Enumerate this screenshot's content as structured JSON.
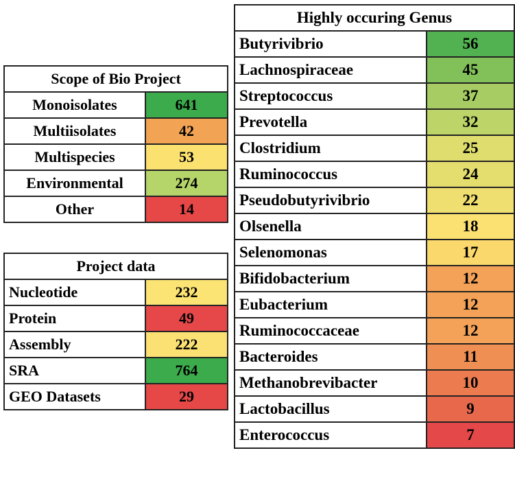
{
  "chart_data": [
    {
      "type": "table",
      "title": "Scope of Bio Project",
      "rows": [
        {
          "label": "Monoisolates",
          "value": 641,
          "color": "#3cab4c"
        },
        {
          "label": "Multiisolates",
          "value": 42,
          "color": "#f2a454"
        },
        {
          "label": "Multispecies",
          "value": 53,
          "color": "#fbe170"
        },
        {
          "label": "Environmental",
          "value": 274,
          "color": "#b5d46a"
        },
        {
          "label": "Other",
          "value": 14,
          "color": "#e64848"
        }
      ]
    },
    {
      "type": "table",
      "title": "Project data",
      "rows": [
        {
          "label": "Nucleotide",
          "value": 232,
          "color": "#fbe474"
        },
        {
          "label": "Protein",
          "value": 49,
          "color": "#e6484a"
        },
        {
          "label": "Assembly",
          "value": 222,
          "color": "#fbe173"
        },
        {
          "label": "SRA",
          "value": 764,
          "color": "#3cab4c"
        },
        {
          "label": "GEO Datasets",
          "value": 29,
          "color": "#e64848"
        }
      ]
    },
    {
      "type": "table",
      "title": "Highly occuring Genus",
      "rows": [
        {
          "label": "Butyrivibrio",
          "value": 56,
          "color": "#52b150"
        },
        {
          "label": "Lachnospiraceae",
          "value": 45,
          "color": "#82c05a"
        },
        {
          "label": "Streptococcus",
          "value": 37,
          "color": "#a6cc63"
        },
        {
          "label": "Prevotella",
          "value": 32,
          "color": "#bcd468"
        },
        {
          "label": "Clostridium",
          "value": 25,
          "color": "#dedd6e"
        },
        {
          "label": "Ruminococcus",
          "value": 24,
          "color": "#e4de6f"
        },
        {
          "label": "Pseudobutyrivibrio",
          "value": 22,
          "color": "#efde70"
        },
        {
          "label": "Olsenella",
          "value": 18,
          "color": "#fbe172"
        },
        {
          "label": "Selenomonas",
          "value": 17,
          "color": "#fbd86c"
        },
        {
          "label": "Bifidobacterium",
          "value": 12,
          "color": "#f3a257"
        },
        {
          "label": "Eubacterium",
          "value": 12,
          "color": "#f3a257"
        },
        {
          "label": "Ruminococcaceae",
          "value": 12,
          "color": "#f3a257"
        },
        {
          "label": "Bacteroides",
          "value": 11,
          "color": "#f08f54"
        },
        {
          "label": "Methanobrevibacter",
          "value": 10,
          "color": "#ec7c50"
        },
        {
          "label": "Lactobacillus",
          "value": 9,
          "color": "#e8684c"
        },
        {
          "label": "Enterococcus",
          "value": 7,
          "color": "#e44848"
        }
      ]
    }
  ]
}
